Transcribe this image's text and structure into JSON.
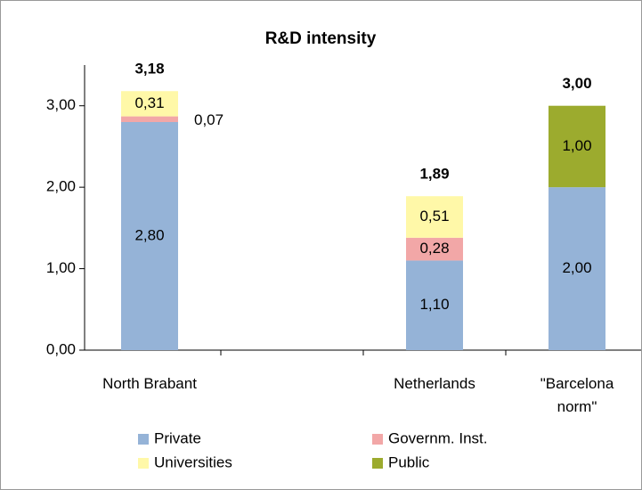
{
  "chart_data": {
    "type": "stacked_bar",
    "title": "R&D intensity",
    "categories": [
      "North Brabant",
      null,
      "Netherlands",
      "\"Barcelona norm\""
    ],
    "series": [
      {
        "name": "Private",
        "color": "#95b3d7",
        "values": [
          2.8,
          null,
          1.1,
          2.0
        ],
        "value_labels": [
          "2,80",
          null,
          "1,10",
          "2,00"
        ]
      },
      {
        "name": "Governm. Inst.",
        "color": "#f2a7a7",
        "values": [
          0.07,
          null,
          0.28,
          null
        ],
        "value_labels": [
          "0,07",
          null,
          "0,28",
          null
        ]
      },
      {
        "name": "Universities",
        "color": "#fff8a8",
        "values": [
          0.31,
          null,
          0.51,
          null
        ],
        "value_labels": [
          "0,31",
          null,
          "0,51",
          null
        ]
      },
      {
        "name": "Public",
        "color": "#9cab2e",
        "values": [
          null,
          null,
          null,
          1.0
        ],
        "value_labels": [
          null,
          null,
          null,
          "1,00"
        ]
      }
    ],
    "totals": {
      "values": [
        3.18,
        null,
        1.89,
        3.0
      ],
      "value_labels": [
        "3,18",
        null,
        "1,89",
        "3,00"
      ]
    },
    "ylim": [
      0,
      3.5
    ],
    "yticks": [
      {
        "value": 0,
        "label": "0,00"
      },
      {
        "value": 1,
        "label": "1,00"
      },
      {
        "value": 2,
        "label": "2,00"
      },
      {
        "value": 3,
        "label": "3,00"
      }
    ],
    "legend": "bottom"
  }
}
